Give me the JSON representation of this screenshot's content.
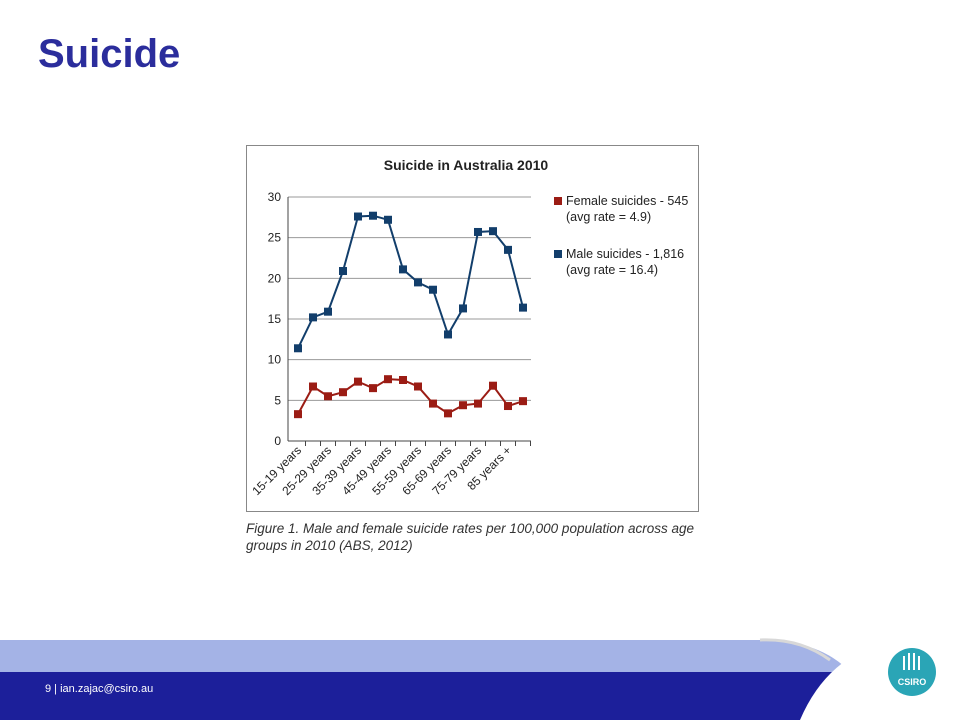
{
  "slide": {
    "title": "Suicide",
    "footer": "9 | ian.zajac@csiro.au",
    "logo": "CSIRO",
    "caption": "Figure 1. Male and female suicide rates per 100,000 population across age groups in 2010 (ABS, 2012)"
  },
  "chart_data": {
    "type": "line",
    "title": "Suicide in Australia 2010",
    "categories": [
      "15-19 years",
      null,
      "25-29 years",
      null,
      "35-39 years",
      null,
      "45-49 years",
      null,
      "55-59 years",
      null,
      "65-69 years",
      null,
      "75-79 years",
      null,
      "85 years +",
      null
    ],
    "series": [
      {
        "name": "Female suicides - 545 (avg rate = 4.9)",
        "color": "#9b1c14",
        "values": [
          3.3,
          6.7,
          5.5,
          6.0,
          7.3,
          6.5,
          7.6,
          7.5,
          6.7,
          4.6,
          3.4,
          4.4,
          4.6,
          6.8,
          4.3,
          4.9
        ]
      },
      {
        "name": "Male suicides - 1,816 (avg rate = 16.4)",
        "color": "#123e6b",
        "values": [
          11.4,
          15.2,
          15.9,
          20.9,
          27.6,
          27.7,
          27.2,
          21.1,
          19.5,
          18.6,
          13.1,
          16.3,
          25.7,
          25.8,
          23.5,
          16.4
        ]
      }
    ],
    "ylim": [
      0,
      30
    ],
    "yticks": [
      0,
      5,
      10,
      15,
      20,
      25,
      30
    ],
    "grid": true,
    "legend": "right"
  }
}
